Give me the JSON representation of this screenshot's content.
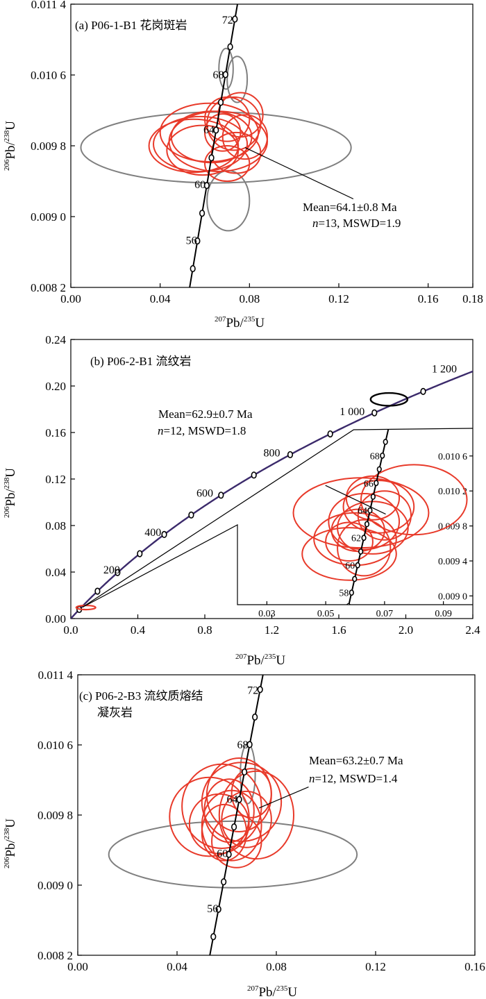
{
  "chart_data": [
    {
      "type": "scatter",
      "subtype": "U-Pb concordia diagram",
      "title": "(a) P06-1-B1 花岗斑岩",
      "xlabel": {
        "sup": "207",
        "main": "Pb/",
        "sup2": "235",
        "end": "U"
      },
      "ylabel": {
        "sup": "206",
        "main": "Pb/",
        "sup2": "238",
        "end": "U"
      },
      "xlim": [
        0.0,
        0.18
      ],
      "ylim": [
        0.0082,
        0.0114
      ],
      "xticks": [
        0.0,
        0.04,
        0.08,
        0.12,
        0.16,
        0.18
      ],
      "xtick_labels": [
        "0.00",
        "0.04",
        "0.08",
        "0.12",
        "0.16",
        "0.18"
      ],
      "yticks": [
        0.0082,
        0.009,
        0.0098,
        0.0106,
        0.0114
      ],
      "ytick_labels": [
        "0.008 2",
        "0.009 0",
        "0.009 8",
        "0.010 6",
        "0.011 4"
      ],
      "age_labels": [
        {
          "age": "56",
          "x": 0.0577,
          "y": 0.00873
        },
        {
          "age": "60",
          "x": 0.0616,
          "y": 0.00936
        },
        {
          "age": "64",
          "x": 0.0656,
          "y": 0.00998
        },
        {
          "age": "68",
          "x": 0.0698,
          "y": 0.0106
        },
        {
          "age": "72",
          "x": 0.0739,
          "y": 0.01122
        }
      ],
      "annotation": {
        "line1": "Mean=64.1±0.8 Ma",
        "line2_italic": "n",
        "line2_rest": "=13, MSWD=1.9"
      },
      "ellipses_accepted": [
        {
          "x": 0.062,
          "y": 0.00995,
          "rx": 0.022,
          "ry": 0.00033
        },
        {
          "x": 0.058,
          "y": 0.00982,
          "rx": 0.021,
          "ry": 0.00031
        },
        {
          "x": 0.066,
          "y": 0.00985,
          "rx": 0.022,
          "ry": 0.00034
        },
        {
          "x": 0.055,
          "y": 0.0098,
          "rx": 0.02,
          "ry": 0.0003
        },
        {
          "x": 0.059,
          "y": 0.00975,
          "rx": 0.016,
          "ry": 0.00028
        },
        {
          "x": 0.063,
          "y": 0.0099,
          "rx": 0.018,
          "ry": 0.00029
        },
        {
          "x": 0.07,
          "y": 0.0101,
          "rx": 0.01,
          "ry": 0.00025
        },
        {
          "x": 0.073,
          "y": 0.01005,
          "rx": 0.012,
          "ry": 0.0003
        },
        {
          "x": 0.076,
          "y": 0.01015,
          "rx": 0.01,
          "ry": 0.00025
        },
        {
          "x": 0.078,
          "y": 0.0099,
          "rx": 0.01,
          "ry": 0.00025
        },
        {
          "x": 0.074,
          "y": 0.00972,
          "rx": 0.011,
          "ry": 0.00023
        },
        {
          "x": 0.07,
          "y": 0.0096,
          "rx": 0.01,
          "ry": 0.0002
        },
        {
          "x": 0.068,
          "y": 0.00995,
          "rx": 0.008,
          "ry": 0.00021
        }
      ],
      "ellipses_rejected": [
        {
          "x": 0.065,
          "y": 0.00978,
          "rx": 0.0605,
          "ry": 0.0004
        },
        {
          "x": 0.0695,
          "y": 0.01067,
          "rx": 0.0032,
          "ry": 0.00023
        },
        {
          "x": 0.0745,
          "y": 0.01055,
          "rx": 0.0045,
          "ry": 0.00026
        },
        {
          "x": 0.0705,
          "y": 0.00918,
          "rx": 0.0095,
          "ry": 0.00034
        }
      ]
    },
    {
      "type": "scatter",
      "subtype": "U-Pb concordia diagram",
      "title": "(b) P06-2-B1 流纹岩",
      "xlabel": {
        "sup": "207",
        "main": "Pb/",
        "sup2": "235",
        "end": "U"
      },
      "ylabel": {
        "sup": "206",
        "main": "Pb/",
        "sup2": "238",
        "end": "U"
      },
      "xlim": [
        0.0,
        2.4
      ],
      "ylim": [
        0.0,
        0.24
      ],
      "xticks": [
        0.0,
        0.4,
        0.8,
        1.2,
        1.6,
        2.0,
        2.4
      ],
      "xtick_labels": [
        "0.0",
        "0.4",
        "0.8",
        "1.2",
        "1.6",
        "2.0",
        "2.4"
      ],
      "yticks": [
        0.0,
        0.04,
        0.08,
        0.12,
        0.16,
        0.2,
        0.24
      ],
      "ytick_labels": [
        "0.00",
        "0.04",
        "0.08",
        "0.12",
        "0.16",
        "0.20",
        "0.24"
      ],
      "age_labels": [
        {
          "age": "200",
          "x": 0.244,
          "y": 0.0315
        },
        {
          "age": "400",
          "x": 0.49,
          "y": 0.064
        },
        {
          "age": "600",
          "x": 0.8,
          "y": 0.0976
        },
        {
          "age": "800",
          "x": 1.2,
          "y": 0.1322
        },
        {
          "age": "1 000",
          "x": 1.68,
          "y": 0.1678
        },
        {
          "age": "1 200",
          "x": 2.23,
          "y": 0.2046
        }
      ],
      "annotation": {
        "line1": "Mean=62.9±0.7 Ma",
        "line2_italic": "n",
        "line2_rest": "=12, MSWD=1.8"
      },
      "rejected_ellipse": {
        "x": 1.9,
        "y": 0.1885,
        "rx": 0.11,
        "ry": 0.0055
      },
      "inset": {
        "xlim": [
          0.02,
          0.1
        ],
        "ylim": [
          0.0089,
          0.0109
        ],
        "xticks": [
          0.03,
          0.05,
          0.07,
          0.09
        ],
        "xtick_labels": [
          "0.03",
          "0.05",
          "0.07",
          "0.09"
        ],
        "yticks": [
          0.009,
          0.0094,
          0.0098,
          0.0102,
          0.0106
        ],
        "ytick_labels": [
          "0.009 0",
          "0.009 4",
          "0.009 8",
          "0.010 2",
          "0.010 6"
        ],
        "age_labels": [
          "58",
          "60",
          "62",
          "64",
          "66",
          "68"
        ],
        "ellipses": [
          {
            "x": 0.062,
            "y": 0.00995,
            "rx": 0.023,
            "ry": 0.0004
          },
          {
            "x": 0.08,
            "y": 0.0101,
            "rx": 0.018,
            "ry": 0.0004
          },
          {
            "x": 0.068,
            "y": 0.01002,
            "rx": 0.012,
            "ry": 0.0003
          },
          {
            "x": 0.063,
            "y": 0.00985,
            "rx": 0.012,
            "ry": 0.00032
          },
          {
            "x": 0.066,
            "y": 0.00978,
            "rx": 0.012,
            "ry": 0.0003
          },
          {
            "x": 0.06,
            "y": 0.00965,
            "rx": 0.014,
            "ry": 0.0003
          },
          {
            "x": 0.058,
            "y": 0.00948,
            "rx": 0.016,
            "ry": 0.0003
          },
          {
            "x": 0.063,
            "y": 0.00955,
            "rx": 0.009,
            "ry": 0.00032
          },
          {
            "x": 0.07,
            "y": 0.00992,
            "rx": 0.009,
            "ry": 0.00028
          },
          {
            "x": 0.061,
            "y": 0.00975,
            "rx": 0.009,
            "ry": 0.00024
          },
          {
            "x": 0.058,
            "y": 0.00962,
            "rx": 0.008,
            "ry": 0.00022
          },
          {
            "x": 0.066,
            "y": 0.01012,
            "rx": 0.009,
            "ry": 0.00025
          }
        ]
      }
    },
    {
      "type": "scatter",
      "subtype": "U-Pb concordia diagram",
      "title": "(c) P06-2-B3 流纹质熔结",
      "title_line2": "凝灰岩",
      "xlabel": {
        "sup": "207",
        "main": "Pb/",
        "sup2": "235",
        "end": "U"
      },
      "ylabel": {
        "sup": "206",
        "main": "Pb/",
        "sup2": "238",
        "end": "U"
      },
      "xlim": [
        0.0,
        0.16
      ],
      "ylim": [
        0.0082,
        0.0114
      ],
      "xticks": [
        0.0,
        0.04,
        0.08,
        0.12,
        0.16
      ],
      "xtick_labels": [
        "0.00",
        "0.04",
        "0.08",
        "0.12",
        "0.16"
      ],
      "yticks": [
        0.0082,
        0.009,
        0.0098,
        0.0106,
        0.0114
      ],
      "ytick_labels": [
        "0.008 2",
        "0.009 0",
        "0.009 8",
        "0.010 6",
        "0.011 4"
      ],
      "age_labels": [
        {
          "age": "56",
          "x": 0.0577,
          "y": 0.00873
        },
        {
          "age": "60",
          "x": 0.0616,
          "y": 0.00936
        },
        {
          "age": "64",
          "x": 0.0656,
          "y": 0.00998
        },
        {
          "age": "68",
          "x": 0.0698,
          "y": 0.0106
        },
        {
          "age": "72",
          "x": 0.0739,
          "y": 0.01122
        }
      ],
      "annotation": {
        "line1": "Mean=63.2±0.7 Ma",
        "line2_italic": "n",
        "line2_rest": "=12, MSWD=1.4"
      },
      "ellipses_accepted": [
        {
          "x": 0.058,
          "y": 0.0099,
          "rx": 0.016,
          "ry": 0.00048
        },
        {
          "x": 0.053,
          "y": 0.00978,
          "rx": 0.016,
          "ry": 0.00045
        },
        {
          "x": 0.066,
          "y": 0.00995,
          "rx": 0.016,
          "ry": 0.00045
        },
        {
          "x": 0.072,
          "y": 0.0098,
          "rx": 0.015,
          "ry": 0.0005
        },
        {
          "x": 0.062,
          "y": 0.00968,
          "rx": 0.012,
          "ry": 0.0004
        },
        {
          "x": 0.065,
          "y": 0.01003,
          "rx": 0.013,
          "ry": 0.00042
        },
        {
          "x": 0.059,
          "y": 0.0096,
          "rx": 0.009,
          "ry": 0.00032
        },
        {
          "x": 0.064,
          "y": 0.0095,
          "rx": 0.01,
          "ry": 0.0003
        },
        {
          "x": 0.068,
          "y": 0.00975,
          "rx": 0.01,
          "ry": 0.00032
        },
        {
          "x": 0.061,
          "y": 0.00985,
          "rx": 0.01,
          "ry": 0.00036
        },
        {
          "x": 0.057,
          "y": 0.0097,
          "rx": 0.012,
          "ry": 0.00034
        },
        {
          "x": 0.07,
          "y": 0.01005,
          "rx": 0.008,
          "ry": 0.00028
        }
      ],
      "ellipses_rejected": [
        {
          "x": 0.0625,
          "y": 0.00935,
          "rx": 0.05,
          "ry": 0.00038
        },
        {
          "x": 0.0685,
          "y": 0.01027,
          "rx": 0.003,
          "ry": 0.00034
        }
      ]
    }
  ],
  "colors": {
    "accepted": "#e83a2a",
    "rejected": "#7f7f7f",
    "axis": "#000000",
    "concordia_b": "#3b2a6b"
  }
}
